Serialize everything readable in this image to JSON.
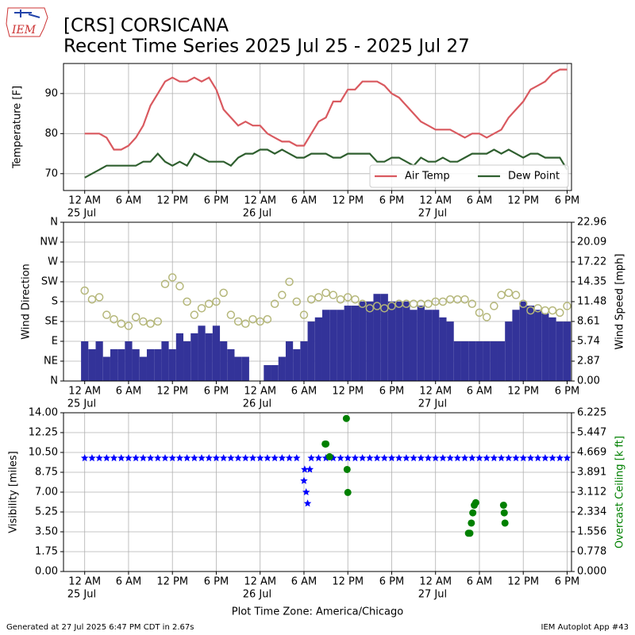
{
  "header": {
    "logo": "IEM",
    "title": "[CRS] CORSICANA",
    "subtitle": "Recent Time Series 2025 Jul 25 - 2025 Jul 27"
  },
  "footer": {
    "left": "Generated at 27 Jul 2025 6:47 PM CDT in 2.67s",
    "right": "IEM Autoplot App #43"
  },
  "chart_data": [
    {
      "type": "line",
      "ylabel": "Temperature [F]",
      "grid": true,
      "legend": "lower right",
      "xlim": [
        -2.9,
        66.6
      ],
      "ylim": [
        65.8,
        97.5
      ],
      "yticks": [
        70,
        80,
        90
      ],
      "xticks": [
        {
          "value": 0,
          "label": "12 AM"
        },
        {
          "value": 6,
          "label": "6 AM"
        },
        {
          "value": 12,
          "label": "12 PM"
        },
        {
          "value": 18,
          "label": "6 PM"
        },
        {
          "value": 24,
          "label": "12 AM"
        },
        {
          "value": 30,
          "label": "6 AM"
        },
        {
          "value": 36,
          "label": "12 PM"
        },
        {
          "value": 42,
          "label": "6 PM"
        },
        {
          "value": 48,
          "label": "12 AM"
        },
        {
          "value": 54,
          "label": "6 AM"
        },
        {
          "value": 60,
          "label": "12 PM"
        },
        {
          "value": 66,
          "label": "6 PM"
        }
      ],
      "xdates": [
        {
          "value": 0,
          "label": "25 Jul"
        },
        {
          "value": 24,
          "label": "26 Jul"
        },
        {
          "value": 48,
          "label": "27 Jul"
        }
      ],
      "x": [
        0,
        1,
        2,
        3,
        4,
        5,
        6,
        7,
        8,
        9,
        10,
        11,
        12,
        13,
        14,
        15,
        16,
        17,
        18,
        19,
        20,
        21,
        22,
        23,
        24,
        25,
        26,
        27,
        28,
        29,
        30,
        31,
        32,
        33,
        34,
        35,
        36,
        37,
        38,
        39,
        40,
        41,
        42,
        43,
        44,
        45,
        46,
        47,
        48,
        49,
        50,
        51,
        52,
        53,
        54,
        55,
        56,
        57,
        58,
        59,
        60,
        61,
        62,
        63,
        64,
        65,
        66
      ],
      "series": [
        {
          "name": "Air Temp",
          "color": "#d9595f",
          "values": [
            80,
            80,
            80,
            79,
            76,
            76,
            77,
            79,
            82,
            87,
            90,
            93,
            94,
            93,
            93,
            94,
            93,
            94,
            91,
            86,
            84,
            82,
            83,
            82,
            82,
            80,
            79,
            78,
            78,
            77,
            77,
            80,
            83,
            84,
            88,
            88,
            91,
            91,
            93,
            93,
            93,
            92,
            90,
            89,
            87,
            85,
            83,
            82,
            81,
            81,
            81,
            80,
            79,
            80,
            80,
            79,
            80,
            81,
            84,
            86,
            88,
            91,
            92,
            93,
            95,
            96,
            96
          ]
        },
        {
          "name": "Dew Point",
          "color": "#2f5f2f",
          "values": [
            69,
            70,
            71,
            72,
            72,
            72,
            72,
            72,
            73,
            73,
            75,
            73,
            72,
            73,
            72,
            75,
            74,
            73,
            73,
            73,
            72,
            74,
            75,
            75,
            76,
            76,
            75,
            76,
            75,
            74,
            74,
            75,
            75,
            75,
            74,
            74,
            75,
            75,
            75,
            75,
            73,
            73,
            74,
            74,
            73,
            72,
            74,
            73,
            73,
            74,
            73,
            73,
            74,
            75,
            75,
            75,
            76,
            75,
            76,
            75,
            74,
            75,
            75,
            74,
            74,
            74,
            71
          ]
        }
      ]
    },
    {
      "type": "combo",
      "ylabel": "Wind Direction",
      "y2label": "Wind Speed [mph]",
      "grid": true,
      "xlim": [
        -2.9,
        66.6
      ],
      "ylim": [
        0,
        360
      ],
      "yticks": [
        {
          "value": 0,
          "label": "N"
        },
        {
          "value": 45,
          "label": "NE"
        },
        {
          "value": 90,
          "label": "E"
        },
        {
          "value": 135,
          "label": "SE"
        },
        {
          "value": 180,
          "label": "S"
        },
        {
          "value": 225,
          "label": "SW"
        },
        {
          "value": 270,
          "label": "W"
        },
        {
          "value": 315,
          "label": "NW"
        },
        {
          "value": 360,
          "label": "N"
        }
      ],
      "y2lim": [
        0,
        22.96
      ],
      "y2ticks": [
        {
          "value": 0,
          "label": "0.00"
        },
        2.87,
        5.74,
        8.61,
        11.48,
        14.35,
        17.22,
        20.09,
        22.96
      ],
      "xticks": [
        {
          "value": 0,
          "label": "12 AM"
        },
        {
          "value": 6,
          "label": "6 AM"
        },
        {
          "value": 12,
          "label": "12 PM"
        },
        {
          "value": 18,
          "label": "6 PM"
        },
        {
          "value": 24,
          "label": "12 AM"
        },
        {
          "value": 30,
          "label": "6 AM"
        },
        {
          "value": 36,
          "label": "12 PM"
        },
        {
          "value": 42,
          "label": "6 PM"
        },
        {
          "value": 48,
          "label": "12 AM"
        },
        {
          "value": 54,
          "label": "6 AM"
        },
        {
          "value": 60,
          "label": "12 PM"
        },
        {
          "value": 66,
          "label": "6 PM"
        }
      ],
      "xdates": [
        {
          "value": 0,
          "label": "25 Jul"
        },
        {
          "value": 24,
          "label": "26 Jul"
        },
        {
          "value": 48,
          "label": "27 Jul"
        }
      ],
      "x": [
        0,
        1,
        2,
        3,
        4,
        5,
        6,
        7,
        8,
        9,
        10,
        11,
        12,
        13,
        14,
        15,
        16,
        17,
        18,
        19,
        20,
        21,
        22,
        23,
        24,
        25,
        26,
        27,
        28,
        29,
        30,
        31,
        32,
        33,
        34,
        35,
        36,
        37,
        38,
        39,
        40,
        41,
        42,
        43,
        44,
        45,
        46,
        47,
        48,
        49,
        50,
        51,
        52,
        53,
        54,
        55,
        56,
        57,
        58,
        59,
        60,
        61,
        62,
        63,
        64,
        65,
        66
      ],
      "series": [
        {
          "kind": "bar",
          "axis": "y2",
          "color": "#333399",
          "values": [
            5.74,
            4.6,
            5.74,
            3.5,
            4.6,
            4.6,
            5.74,
            4.6,
            3.5,
            4.6,
            4.6,
            5.74,
            4.6,
            6.9,
            5.74,
            6.9,
            8.0,
            6.9,
            8.0,
            5.74,
            4.6,
            3.5,
            3.5,
            0,
            0,
            2.3,
            2.3,
            3.5,
            5.74,
            4.6,
            5.74,
            8.6,
            9.2,
            10.3,
            10.3,
            10.3,
            10.9,
            10.9,
            11.5,
            11.5,
            12.6,
            12.6,
            11.5,
            11.5,
            11.5,
            10.3,
            10.9,
            10.3,
            10.3,
            9.2,
            8.6,
            5.74,
            5.74,
            5.74,
            5.74,
            5.74,
            5.74,
            5.74,
            8.6,
            10.3,
            11.5,
            10.9,
            10.3,
            9.8,
            9.2,
            8.6,
            8.6
          ]
        },
        {
          "kind": "scatter",
          "marker": "circle",
          "color": "#b5b77a",
          "values": [
            205,
            185,
            190,
            150,
            140,
            130,
            125,
            145,
            135,
            130,
            135,
            220,
            235,
            215,
            180,
            150,
            165,
            175,
            180,
            200,
            150,
            135,
            130,
            140,
            135,
            140,
            175,
            195,
            225,
            180,
            150,
            185,
            190,
            200,
            195,
            185,
            190,
            185,
            175,
            165,
            170,
            165,
            170,
            175,
            175,
            175,
            175,
            175,
            180,
            180,
            185,
            185,
            185,
            175,
            155,
            145,
            170,
            195,
            200,
            195,
            175,
            160,
            165,
            160,
            160,
            155,
            170
          ]
        }
      ]
    },
    {
      "type": "scatter",
      "ylabel": "Visibility [miles]",
      "y2label": "Overcast Ceiling [k ft]",
      "y2label_color": "#008000",
      "grid": true,
      "xlabel": "Plot Time Zone: America/Chicago",
      "xlim": [
        -2.9,
        66.6
      ],
      "ylim": [
        0,
        14
      ],
      "yticks": [
        {
          "value": 0,
          "label": "0.00"
        },
        1.75,
        {
          "value": 3.5,
          "label": "3.50"
        },
        5.25,
        {
          "value": 7,
          "label": "7.00"
        },
        8.75,
        {
          "value": 10.5,
          "label": "10.50"
        },
        12.25,
        {
          "value": 14,
          "label": "14.00"
        }
      ],
      "y2lim": [
        0,
        6.225
      ],
      "y2ticks": [
        {
          "value": 0,
          "label": "0.000"
        },
        0.778,
        1.556,
        2.334,
        3.112,
        3.891,
        4.669,
        5.447,
        6.225
      ],
      "xticks": [
        {
          "value": 0,
          "label": "12 AM"
        },
        {
          "value": 6,
          "label": "6 AM"
        },
        {
          "value": 12,
          "label": "12 PM"
        },
        {
          "value": 18,
          "label": "6 PM"
        },
        {
          "value": 24,
          "label": "12 AM"
        },
        {
          "value": 30,
          "label": "6 AM"
        },
        {
          "value": 36,
          "label": "12 PM"
        },
        {
          "value": 42,
          "label": "6 PM"
        },
        {
          "value": 48,
          "label": "12 AM"
        },
        {
          "value": 54,
          "label": "6 AM"
        },
        {
          "value": 60,
          "label": "12 PM"
        },
        {
          "value": 66,
          "label": "6 PM"
        }
      ],
      "xdates": [
        {
          "value": 0,
          "label": "25 Jul"
        },
        {
          "value": 24,
          "label": "26 Jul"
        },
        {
          "value": 48,
          "label": "27 Jul"
        }
      ],
      "series": [
        {
          "marker": "star",
          "color": "#0000ff",
          "x": [
            0,
            1,
            2,
            3,
            4,
            5,
            6,
            7,
            8,
            9,
            10,
            11,
            12,
            13,
            14,
            15,
            16,
            17,
            18,
            19,
            20,
            21,
            22,
            23,
            24,
            25,
            26,
            27,
            28,
            29,
            30.0,
            30.1,
            30.3,
            30.5,
            30.8,
            31,
            32,
            33,
            34,
            35,
            36,
            37,
            38,
            39,
            40,
            41,
            42,
            43,
            44,
            45,
            46,
            47,
            48,
            49,
            50,
            51,
            52,
            53,
            54,
            55,
            56,
            57,
            58,
            59,
            60,
            61,
            62,
            63,
            64,
            65,
            66
          ],
          "values": [
            10,
            10,
            10,
            10,
            10,
            10,
            10,
            10,
            10,
            10,
            10,
            10,
            10,
            10,
            10,
            10,
            10,
            10,
            10,
            10,
            10,
            10,
            10,
            10,
            10,
            10,
            10,
            10,
            10,
            10,
            8,
            9,
            7,
            6,
            9,
            10,
            10,
            10,
            10,
            10,
            10,
            10,
            10,
            10,
            10,
            10,
            10,
            10,
            10,
            10,
            10,
            10,
            10,
            10,
            10,
            10,
            10,
            10,
            10,
            10,
            10,
            10,
            10,
            10,
            10,
            10,
            10,
            10,
            10,
            10,
            10
          ]
        },
        {
          "marker": "circle",
          "axis": "y2",
          "color": "#008000",
          "x": [
            32.9,
            33.0,
            33.5,
            35.8,
            35.9,
            36.0,
            52.5,
            52.7,
            52.9,
            53.1,
            53.3,
            53.5,
            57.3,
            57.4,
            57.5
          ],
          "values": [
            5.0,
            5.0,
            4.5,
            6.0,
            4.0,
            3.1,
            1.5,
            1.5,
            1.9,
            2.3,
            2.6,
            2.7,
            2.6,
            2.3,
            1.9
          ]
        }
      ]
    }
  ]
}
